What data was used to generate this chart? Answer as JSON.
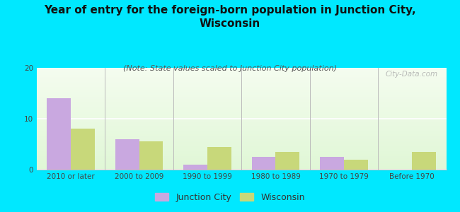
{
  "title": "Year of entry for the foreign-born population in Junction City,\nWisconsin",
  "subtitle": "(Note: State values scaled to Junction City population)",
  "categories": [
    "2010 or later",
    "2000 to 2009",
    "1990 to 1999",
    "1980 to 1989",
    "1970 to 1979",
    "Before 1970"
  ],
  "junction_city": [
    14,
    6,
    1,
    2.5,
    2.5,
    0
  ],
  "wisconsin": [
    8,
    5.5,
    4.5,
    3.5,
    2,
    3.5
  ],
  "bar_color_jc": "#c9a8e0",
  "bar_color_wi": "#c8d87a",
  "background_outer": "#00e8ff",
  "ylim": [
    0,
    20
  ],
  "yticks": [
    0,
    10,
    20
  ],
  "bar_width": 0.35,
  "title_fontsize": 11,
  "subtitle_fontsize": 8,
  "tick_fontsize": 7.5,
  "legend_fontsize": 9,
  "watermark": "City-Data.com"
}
